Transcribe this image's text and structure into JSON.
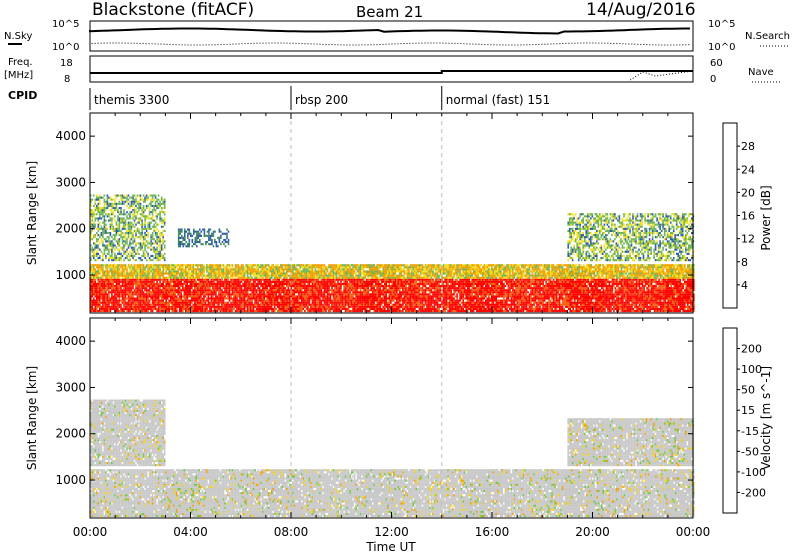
{
  "header": {
    "title": "Blackstone (fitACF)",
    "beam": "Beam 21",
    "date": "14/Aug/2016"
  },
  "top_panels": {
    "nsky_label": "N.Sky",
    "nsearch_label": "N.Search",
    "freq_label_1": "Freq.",
    "freq_label_2": "[MHz]",
    "nave_label": "Nave",
    "cpid_label": "CPID",
    "counts_left_top": "10^5",
    "counts_left_bottom": "10^0",
    "counts_right_top": "10^5",
    "counts_right_bottom": "10^0",
    "freq_tick_top": "18",
    "freq_tick_bottom": "8",
    "nave_tick_top": "60",
    "nave_tick_bottom": "0"
  },
  "cpid_segments": [
    {
      "label": "themis 3300",
      "start_hour": 0
    },
    {
      "label": "rbsp 200",
      "start_hour": 8
    },
    {
      "label": "normal (fast) 151",
      "start_hour": 14
    }
  ],
  "chart_data": [
    {
      "type": "heatmap",
      "quantity": "Power",
      "colorbar_label": "Power [dB]",
      "colorbar_ticks": [
        "4",
        "8",
        "12",
        "16",
        "20",
        "24",
        "28"
      ],
      "colorbar_colors": [
        "#1e20f0",
        "#2d5aa8",
        "#3f8a56",
        "#6cb456",
        "#f0e020",
        "#f0a000",
        "#f06010",
        "#ff0000"
      ],
      "ylabel": "Slant Range [km]",
      "ylim": [
        180,
        4500
      ],
      "y_ticks": [
        "1000",
        "2000",
        "3000",
        "4000"
      ],
      "xlim_hours": [
        0,
        24
      ],
      "echo_regions": [
        {
          "hours": [
            0,
            24
          ],
          "range_km": [
            200,
            1200
          ],
          "level": "strong"
        },
        {
          "hours": [
            0,
            3
          ],
          "range_km": [
            1300,
            2700
          ],
          "level": "moderate"
        },
        {
          "hours": [
            3.5,
            5.5
          ],
          "range_km": [
            1600,
            2000
          ],
          "level": "weak"
        },
        {
          "hours": [
            19,
            24
          ],
          "range_km": [
            1300,
            2300
          ],
          "level": "moderate"
        }
      ]
    },
    {
      "type": "heatmap",
      "quantity": "Velocity",
      "colorbar_label": "Velocity [m s^-1]",
      "colorbar_ticks": [
        "200",
        "100",
        "50",
        "15",
        "-15",
        "-50",
        "-100",
        "-200"
      ],
      "colorbar_colors": [
        "#1f2fd0",
        "#2d6aa8",
        "#3f9a56",
        "#70c840",
        "#c8c8c8",
        "#f0d020",
        "#f0a000",
        "#f06010",
        "#ff0000"
      ],
      "ylabel": "Slant Range [km]",
      "ylim": [
        180,
        4500
      ],
      "y_ticks": [
        "1000",
        "2000",
        "3000",
        "4000"
      ],
      "xlim_hours": [
        0,
        24
      ],
      "echo_regions": [
        {
          "hours": [
            0,
            24
          ],
          "range_km": [
            200,
            1200
          ],
          "level": "ground-scatter"
        },
        {
          "hours": [
            0,
            3
          ],
          "range_km": [
            1300,
            2700
          ],
          "level": "ground-scatter"
        },
        {
          "hours": [
            19,
            24
          ],
          "range_km": [
            1300,
            2300
          ],
          "level": "ground-scatter"
        }
      ]
    }
  ],
  "x_axis": {
    "ticks": [
      "00:00",
      "04:00",
      "08:00",
      "12:00",
      "16:00",
      "20:00",
      "00:00"
    ],
    "label": "Time UT"
  }
}
